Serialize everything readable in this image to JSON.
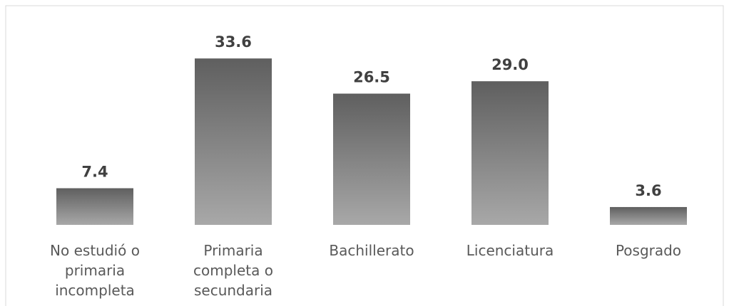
{
  "chart_data": {
    "type": "bar",
    "categories": [
      "No estudió o primaria incompleta",
      "Primaria completa o secundaria",
      "Bachillerato",
      "Licenciatura",
      "Posgrado"
    ],
    "values": [
      7.4,
      33.6,
      26.5,
      29.0,
      3.6
    ],
    "value_labels": [
      "7.4",
      "33.6",
      "26.5",
      "29.0",
      "3.6"
    ],
    "color": [
      "#5f5f5f",
      "#a8a8a8"
    ],
    "ylim": [
      0,
      40
    ],
    "grid": false
  }
}
